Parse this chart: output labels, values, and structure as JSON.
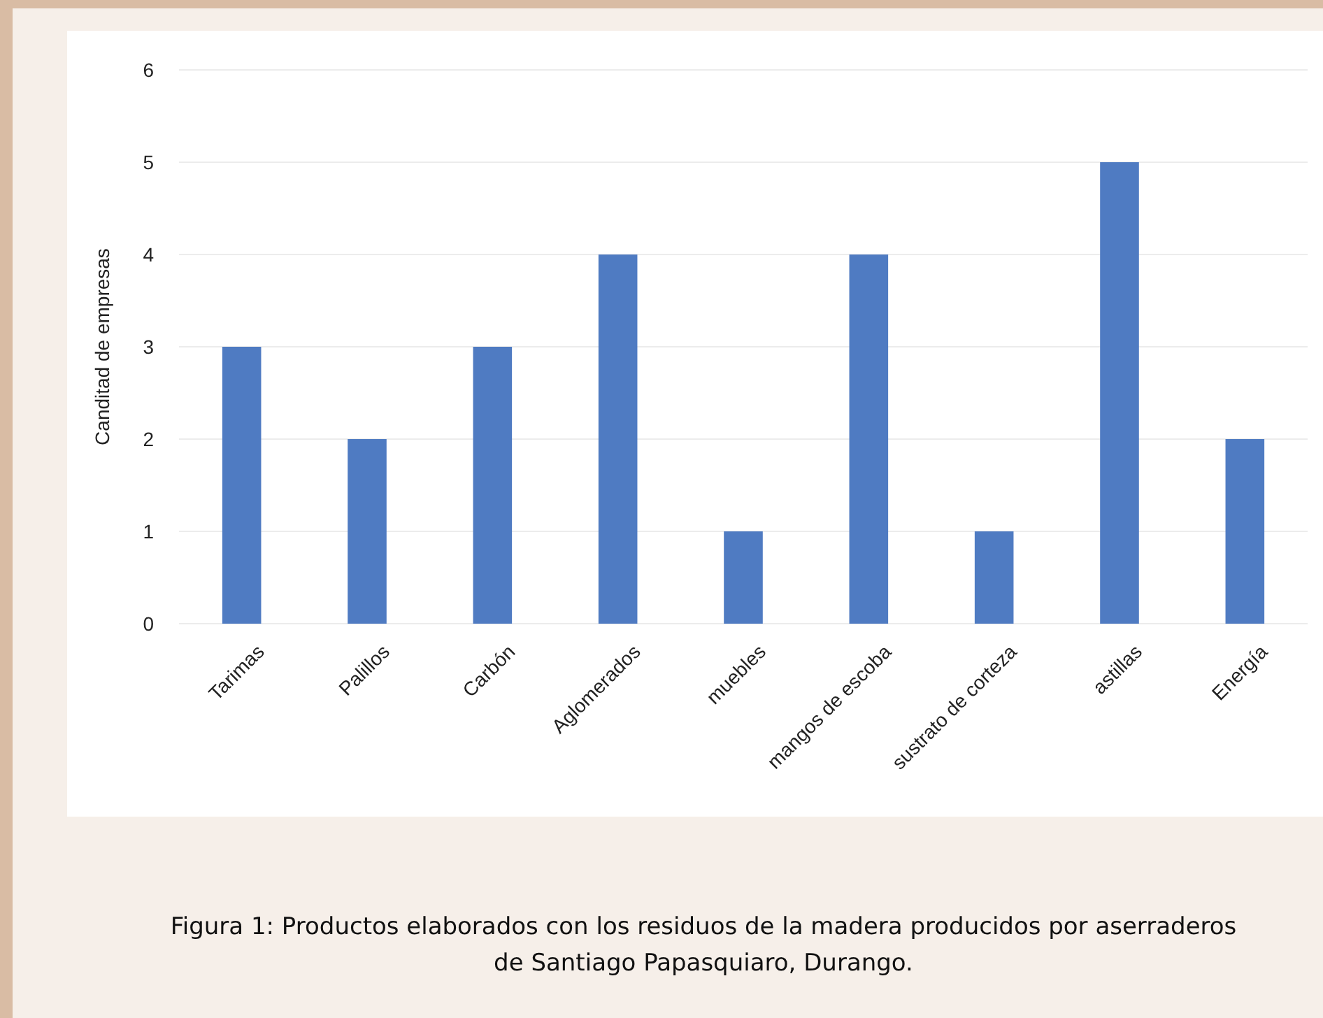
{
  "chart_data": {
    "type": "bar",
    "ylabel": "Canditad de empresas",
    "categories": [
      "Tarimas",
      "Palillos",
      "Carbón",
      "Aglomerados",
      "muebles",
      "mangos de escoba",
      "sustrato de corteza",
      "astillas",
      "Energía"
    ],
    "values": [
      3,
      2,
      3,
      4,
      1,
      4,
      1,
      5,
      2
    ],
    "color": "#4f7bc2",
    "ylim": [
      0,
      6
    ],
    "yticks": [
      0,
      1,
      2,
      3,
      4,
      5,
      6
    ],
    "grid": "y",
    "annotations": [
      "Figura 1: Productos elaborados con los residuos de la madera producidos por aserraderos de Santiago Papasquiaro, Durango."
    ]
  }
}
